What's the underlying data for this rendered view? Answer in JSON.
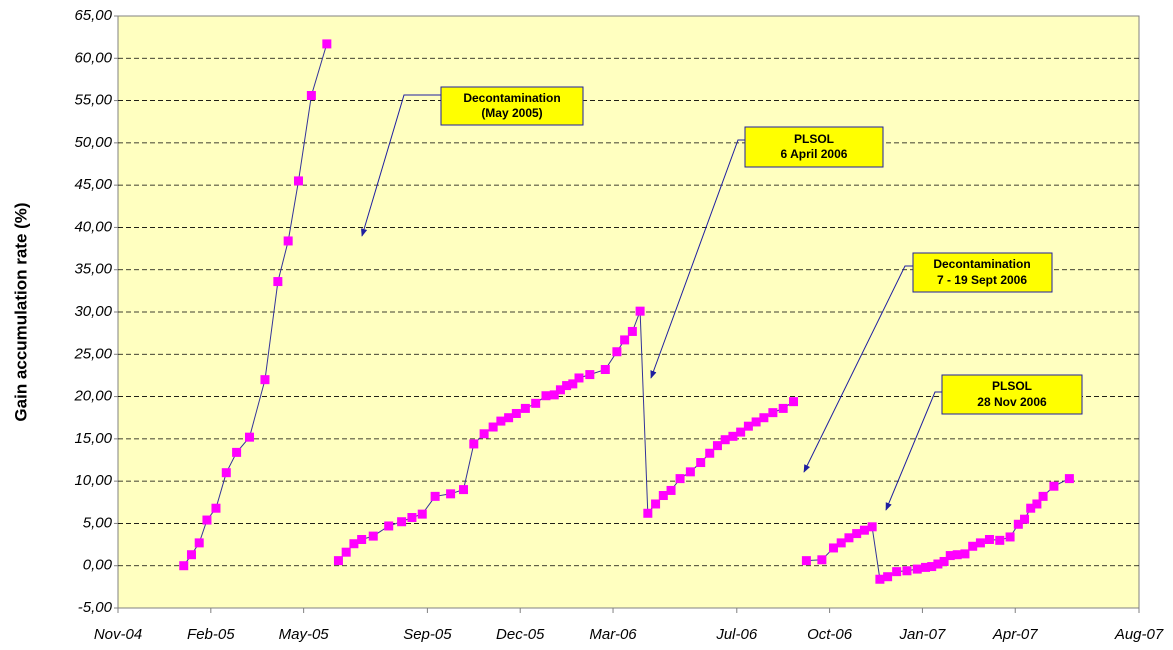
{
  "chart_data": {
    "type": "line",
    "y_label": "Gain accumulation rate (%)",
    "x": [
      "2005-01",
      "2005-01",
      "2005-01",
      "2005-01",
      "2005-02",
      "2005-02",
      "2005-02",
      "2005-03",
      "2005-03",
      "2005-04",
      "2005-04",
      "2005-04",
      "2005-05",
      "2005-05",
      null,
      "2005-06",
      "2005-06",
      "2005-06",
      "2005-06",
      "2005-07",
      "2005-07",
      "2005-08",
      "2005-08",
      "2005-08",
      "2005-09",
      "2005-09",
      "2005-10",
      "2005-10",
      "2005-10",
      "2005-11",
      "2005-11",
      "2005-11",
      "2005-11",
      "2005-12",
      "2005-12",
      "2005-12",
      "2006-01",
      "2006-01",
      "2006-01",
      "2006-01",
      "2006-01",
      "2006-02",
      "2006-02",
      "2006-03",
      "2006-03",
      "2006-03",
      "2006-03",
      "2006-04",
      "2006-04",
      "2006-04",
      "2006-04",
      "2006-05",
      "2006-05",
      "2006-05",
      "2006-06",
      "2006-06",
      "2006-06",
      "2006-06",
      "2006-07",
      "2006-07",
      "2006-07",
      "2006-07",
      "2006-08",
      "2006-08",
      "2006-08",
      null,
      "2006-09",
      "2006-09",
      "2006-10",
      "2006-10",
      "2006-10",
      "2006-10",
      "2006-11",
      "2006-11",
      "2006-11",
      "2006-11",
      "2006-12",
      "2006-12",
      "2006-12",
      "2007-01",
      "2007-01",
      "2007-01",
      "2007-01",
      "2007-01",
      "2007-02",
      "2007-02",
      "2007-02",
      "2007-02",
      "2007-03",
      "2007-03",
      "2007-03",
      "2007-04",
      "2007-04",
      "2007-04",
      "2007-04",
      "2007-04",
      "2007-05",
      "2007-05"
    ],
    "series": [
      {
        "color": "#ff00ff",
        "line_color": "#333399",
        "values": [
          0,
          1.3,
          2.7,
          5.4,
          6.8,
          11.0,
          13.4,
          15.2,
          22.0,
          33.6,
          38.4,
          45.5,
          55.6,
          61.7,
          null,
          0.6,
          1.6,
          2.6,
          3.1,
          3.5,
          4.7,
          5.2,
          5.7,
          6.1,
          8.2,
          8.5,
          9.0,
          14.4,
          15.6,
          16.4,
          17.1,
          17.5,
          18.0,
          18.6,
          19.2,
          20.1,
          20.2,
          20.8,
          21.3,
          21.5,
          22.2,
          22.6,
          23.2,
          25.3,
          26.7,
          27.7,
          30.1,
          6.2,
          7.3,
          8.3,
          8.9,
          10.3,
          11.1,
          12.2,
          13.3,
          14.2,
          14.9,
          15.3,
          15.8,
          16.5,
          17.0,
          17.5,
          18.1,
          18.6,
          19.4,
          null,
          0.6,
          0.7,
          2.1,
          2.7,
          3.3,
          3.8,
          4.2,
          4.6,
          -1.6,
          -1.3,
          -0.7,
          -0.6,
          -0.4,
          -0.2,
          -0.1,
          0.2,
          0.5,
          1.2,
          1.3,
          1.4,
          2.3,
          2.7,
          3.1,
          3.0,
          3.4,
          4.9,
          5.5,
          6.8,
          7.3,
          8.2,
          9.4,
          10.3
        ]
      }
    ],
    "xlim": [
      "2004-11",
      "2007-08"
    ],
    "xticks": [
      {
        "value": "2004-11",
        "label": "Nov-04"
      },
      {
        "value": "2005-02",
        "label": "Feb-05"
      },
      {
        "value": "2005-05",
        "label": "May-05"
      },
      {
        "value": "2005-09",
        "label": "Sep-05"
      },
      {
        "value": "2005-12",
        "label": "Dec-05"
      },
      {
        "value": "2006-03",
        "label": "Mar-06"
      },
      {
        "value": "2006-07",
        "label": "Jul-06"
      },
      {
        "value": "2006-10",
        "label": "Oct-06"
      },
      {
        "value": "2007-01",
        "label": "Jan-07"
      },
      {
        "value": "2007-04",
        "label": "Apr-07"
      },
      {
        "value": "2007-08",
        "label": "Aug-07"
      }
    ],
    "ylim": [
      -5,
      65
    ],
    "yticks": [
      {
        "value": -5,
        "label": "-5,00"
      },
      {
        "value": 0,
        "label": "0,00"
      },
      {
        "value": 5,
        "label": "5,00"
      },
      {
        "value": 10,
        "label": "10,00"
      },
      {
        "value": 15,
        "label": "15,00"
      },
      {
        "value": 20,
        "label": "20,00"
      },
      {
        "value": 25,
        "label": "25,00"
      },
      {
        "value": 30,
        "label": "30,00"
      },
      {
        "value": 35,
        "label": "35,00"
      },
      {
        "value": 40,
        "label": "40,00"
      },
      {
        "value": 45,
        "label": "45,00"
      },
      {
        "value": 50,
        "label": "50,00"
      },
      {
        "value": 55,
        "label": "55,00"
      },
      {
        "value": 60,
        "label": "60,00"
      },
      {
        "value": 65,
        "label": "65,00"
      }
    ],
    "grid": true,
    "annotations": [
      [
        "Decontamination",
        "(May 2005)"
      ],
      [
        "PLSOL",
        "6 April 2006"
      ],
      [
        "Decontamination",
        "7 - 19 Sept 2006"
      ],
      [
        "PLSOL",
        "28 Nov 2006"
      ]
    ]
  }
}
